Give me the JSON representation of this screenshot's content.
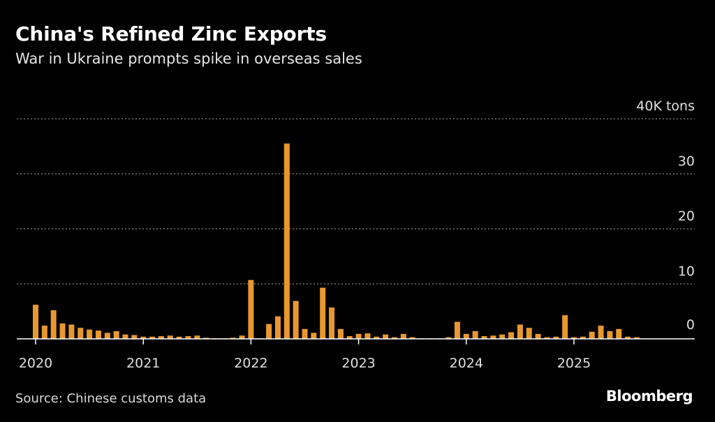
{
  "title": "China's Refined Zinc Exports",
  "subtitle": "War in Ukraine prompts spike in overseas sales",
  "source": "Source: Chinese customs data",
  "logo": "Bloomberg",
  "colors": {
    "bar": "#e8982f",
    "background": "#000000",
    "grid": "#8a8a8a",
    "axis": "#ffffff"
  },
  "chart_data": {
    "type": "bar",
    "title": "China's Refined Zinc Exports",
    "subtitle": "War in Ukraine prompts spike in overseas sales",
    "ylabel": "",
    "y_unit": "40K tons",
    "ylim": [
      0,
      40
    ],
    "yticks": [
      0,
      10,
      20,
      30,
      40
    ],
    "ytick_labels": [
      "0",
      "10",
      "20",
      "30",
      "40K tons"
    ],
    "grid": true,
    "xticks": [
      "2020",
      "2021",
      "2022",
      "2023",
      "2024",
      "2025"
    ],
    "x_start": "2020-01",
    "x_end": "2025-08",
    "categories": [
      "2020-01",
      "2020-02",
      "2020-03",
      "2020-04",
      "2020-05",
      "2020-06",
      "2020-07",
      "2020-08",
      "2020-09",
      "2020-10",
      "2020-11",
      "2020-12",
      "2021-01",
      "2021-02",
      "2021-03",
      "2021-04",
      "2021-05",
      "2021-06",
      "2021-07",
      "2021-08",
      "2021-09",
      "2021-10",
      "2021-11",
      "2021-12",
      "2022-01",
      "2022-02",
      "2022-03",
      "2022-04",
      "2022-05",
      "2022-06",
      "2022-07",
      "2022-08",
      "2022-09",
      "2022-10",
      "2022-11",
      "2022-12",
      "2023-01",
      "2023-02",
      "2023-03",
      "2023-04",
      "2023-05",
      "2023-06",
      "2023-07",
      "2023-08",
      "2023-09",
      "2023-10",
      "2023-11",
      "2023-12",
      "2024-01",
      "2024-02",
      "2024-03",
      "2024-04",
      "2024-05",
      "2024-06",
      "2024-07",
      "2024-08",
      "2024-09",
      "2024-10",
      "2024-11",
      "2024-12",
      "2025-01",
      "2025-02",
      "2025-03",
      "2025-04",
      "2025-05",
      "2025-06",
      "2025-07",
      "2025-08"
    ],
    "values": [
      6.2,
      2.4,
      5.2,
      2.8,
      2.6,
      2.0,
      1.7,
      1.5,
      1.1,
      1.4,
      0.8,
      0.7,
      0.4,
      0.4,
      0.5,
      0.6,
      0.4,
      0.5,
      0.6,
      0.2,
      0.1,
      0.1,
      0.2,
      0.6,
      10.7,
      0.1,
      2.7,
      4.1,
      35.5,
      6.9,
      1.8,
      1.1,
      9.3,
      5.7,
      1.8,
      0.5,
      0.9,
      1.0,
      0.4,
      0.8,
      0.3,
      0.9,
      0.3,
      0.1,
      0.1,
      0.1,
      0.3,
      3.1,
      0.9,
      1.4,
      0.5,
      0.6,
      0.8,
      1.2,
      2.6,
      2.0,
      0.9,
      0.3,
      0.4,
      4.3,
      0.3,
      0.4,
      1.3,
      2.4,
      1.4,
      1.8,
      0.4,
      0.3
    ]
  }
}
